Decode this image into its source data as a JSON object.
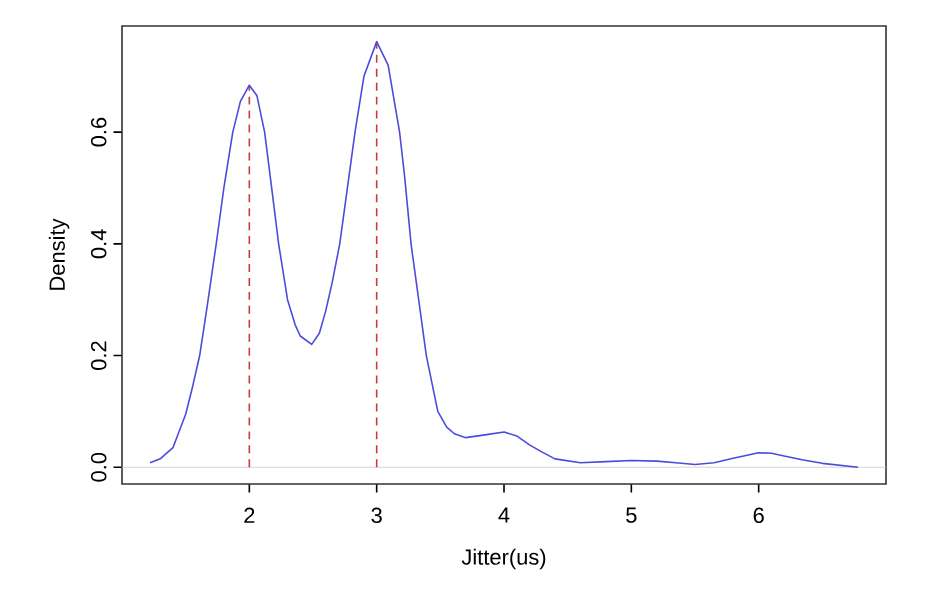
{
  "chart_data": {
    "type": "line",
    "xlabel": "Jitter(us)",
    "ylabel": "Density",
    "xlim": [
      1.0,
      7.0
    ],
    "ylim": [
      -0.03,
      0.79
    ],
    "xticks": [
      2,
      3,
      4,
      5,
      6
    ],
    "yticks": [
      {
        "value": 0,
        "label": "0.0"
      },
      0.2,
      0.4,
      0.6
    ],
    "marker": "none",
    "ref_lines": [
      {
        "axis": "y",
        "value": 0,
        "color": "#c8c8c8",
        "line_style": "solid"
      },
      {
        "axis": "x",
        "value": 2,
        "color": "#c83c3c",
        "line_style": "dashed"
      },
      {
        "axis": "x",
        "value": 3,
        "color": "#c83c3c",
        "line_style": "dashed"
      }
    ],
    "series": [
      {
        "color": "#4b4bdc",
        "line_style": "solid",
        "x": [
          1.22,
          1.3,
          1.4,
          1.5,
          1.55,
          1.61,
          1.67,
          1.74,
          1.8,
          1.87,
          1.93,
          2.0,
          2.06,
          2.12,
          2.17,
          2.23,
          2.3,
          2.36,
          2.4,
          2.49,
          2.55,
          2.6,
          2.65,
          2.71,
          2.77,
          2.83,
          2.9,
          3.0,
          3.09,
          3.18,
          3.22,
          3.27,
          3.33,
          3.39,
          3.48,
          3.55,
          3.61,
          3.7,
          3.85,
          4.0,
          4.1,
          4.2,
          4.3,
          4.4,
          4.6,
          4.8,
          5.0,
          5.2,
          5.35,
          5.5,
          5.65,
          5.8,
          6.0,
          6.1,
          6.2,
          6.35,
          6.5,
          6.78
        ],
        "values": [
          0.008,
          0.015,
          0.035,
          0.095,
          0.14,
          0.2,
          0.29,
          0.4,
          0.5,
          0.6,
          0.655,
          0.684,
          0.665,
          0.6,
          0.51,
          0.4,
          0.3,
          0.255,
          0.235,
          0.22,
          0.24,
          0.28,
          0.33,
          0.4,
          0.5,
          0.6,
          0.7,
          0.762,
          0.72,
          0.6,
          0.52,
          0.4,
          0.3,
          0.2,
          0.1,
          0.072,
          0.06,
          0.053,
          0.058,
          0.063,
          0.056,
          0.04,
          0.027,
          0.015,
          0.008,
          0.01,
          0.012,
          0.011,
          0.008,
          0.005,
          0.008,
          0.016,
          0.026,
          0.025,
          0.02,
          0.013,
          0.007,
          0.0
        ]
      }
    ]
  }
}
